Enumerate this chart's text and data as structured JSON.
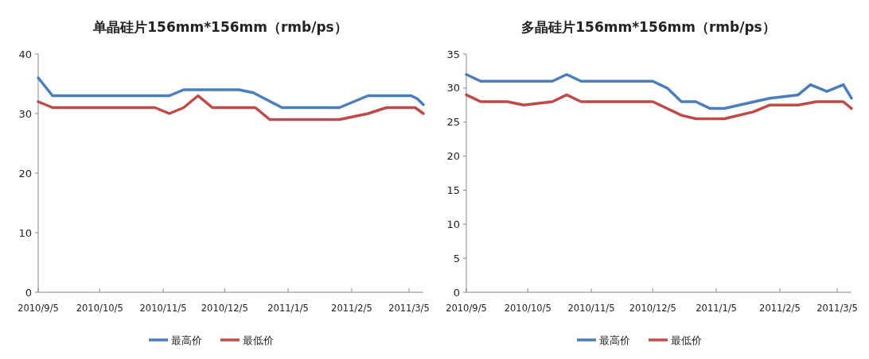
{
  "chart_data": [
    {
      "type": "line",
      "title": "单晶硅片156mm*156mm（rmb/ps）",
      "xlim": [
        "2010-09-05",
        "2011-03-12"
      ],
      "xticks": [
        {
          "value": "2010-09-05",
          "label": "2010/9/5"
        },
        {
          "value": "2010-10-05",
          "label": "2010/10/5"
        },
        {
          "value": "2010-11-05",
          "label": "2010/11/5"
        },
        {
          "value": "2010-12-05",
          "label": "2010/12/5"
        },
        {
          "value": "2011-01-05",
          "label": "2011/1/5"
        },
        {
          "value": "2011-02-05",
          "label": "2011/2/5"
        },
        {
          "value": "2011-03-05",
          "label": "2011/3/5"
        }
      ],
      "ylim": [
        0,
        40
      ],
      "yticks": [
        0,
        10,
        20,
        30,
        40
      ],
      "grid": false,
      "legend": "bottom",
      "series": [
        {
          "name": "最高价",
          "color": "#4a7ebb",
          "x": [
            "2010-09-05",
            "2010-09-12",
            "2010-11-08",
            "2010-11-15",
            "2010-12-12",
            "2010-12-19",
            "2011-01-02",
            "2011-01-30",
            "2011-02-13",
            "2011-03-06",
            "2011-03-09",
            "2011-03-12"
          ],
          "values": [
            36,
            33,
            33,
            34,
            34,
            33.5,
            31,
            31,
            33,
            33,
            32.5,
            31.5
          ]
        },
        {
          "name": "最低价",
          "color": "#be4b48",
          "x": [
            "2010-09-05",
            "2010-09-12",
            "2010-11-01",
            "2010-11-08",
            "2010-11-15",
            "2010-11-22",
            "2010-11-29",
            "2010-12-20",
            "2010-12-27",
            "2011-01-30",
            "2011-02-13",
            "2011-02-22",
            "2011-03-08",
            "2011-03-12"
          ],
          "values": [
            32,
            31,
            31,
            30,
            31,
            33,
            31,
            31,
            29,
            29,
            30,
            31,
            31,
            30
          ]
        }
      ]
    },
    {
      "type": "line",
      "title": "多晶硅片156mm*156mm（rmb/ps）",
      "xlim": [
        "2010-09-05",
        "2011-03-12"
      ],
      "xticks": [
        {
          "value": "2010-09-05",
          "label": "2010/9/5"
        },
        {
          "value": "2010-10-05",
          "label": "2010/10/5"
        },
        {
          "value": "2010-11-05",
          "label": "2010/11/5"
        },
        {
          "value": "2010-12-05",
          "label": "2010/12/5"
        },
        {
          "value": "2011-01-05",
          "label": "2011/1/5"
        },
        {
          "value": "2011-02-05",
          "label": "2011/2/5"
        },
        {
          "value": "2011-03-05",
          "label": "2011/3/5"
        }
      ],
      "ylim": [
        0,
        35
      ],
      "yticks": [
        0,
        5,
        10,
        15,
        20,
        25,
        30,
        35
      ],
      "grid": false,
      "legend": "bottom",
      "series": [
        {
          "name": "最高价",
          "color": "#4a7ebb",
          "x": [
            "2010-09-05",
            "2010-09-12",
            "2010-10-17",
            "2010-10-24",
            "2010-10-31",
            "2010-12-05",
            "2010-12-12",
            "2010-12-19",
            "2010-12-26",
            "2011-01-02",
            "2011-01-09",
            "2011-01-31",
            "2011-02-14",
            "2011-02-20",
            "2011-02-28",
            "2011-03-08",
            "2011-03-12"
          ],
          "values": [
            32,
            31,
            31,
            32,
            31,
            31,
            30,
            28,
            28,
            27,
            27,
            28.5,
            29,
            30.5,
            29.5,
            30.5,
            28.5
          ]
        },
        {
          "name": "最低价",
          "color": "#be4b48",
          "x": [
            "2010-09-05",
            "2010-09-12",
            "2010-09-25",
            "2010-10-03",
            "2010-10-17",
            "2010-10-24",
            "2010-10-31",
            "2010-12-05",
            "2010-12-19",
            "2010-12-26",
            "2011-01-09",
            "2011-01-23",
            "2011-01-31",
            "2011-02-14",
            "2011-02-23",
            "2011-03-08",
            "2011-03-12"
          ],
          "values": [
            29,
            28,
            28,
            27.5,
            28,
            29,
            28,
            28,
            26,
            25.5,
            25.5,
            26.5,
            27.5,
            27.5,
            28,
            28,
            27
          ]
        }
      ]
    }
  ]
}
